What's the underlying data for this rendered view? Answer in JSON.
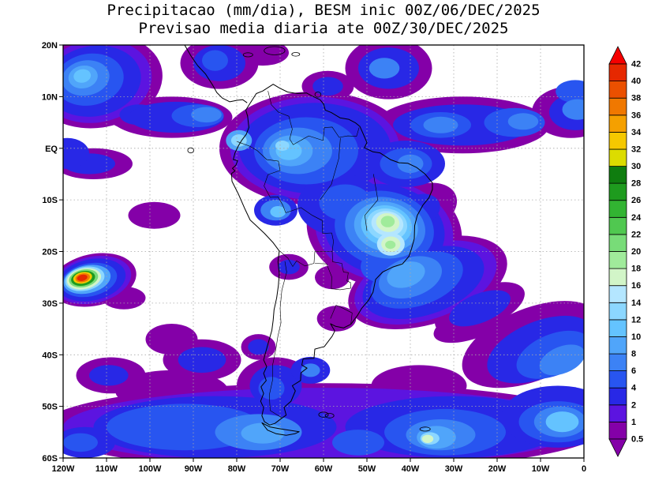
{
  "title": {
    "line1": "Precipitacao (mm/dia), BESM inic 00Z/06/DEC/2025",
    "line2": "Previsao media diaria ate 00Z/30/DEC/2025"
  },
  "axes": {
    "lat_ticks": [
      "20N",
      "10N",
      "EQ",
      "10S",
      "20S",
      "30S",
      "40S",
      "50S",
      "60S"
    ],
    "lon_ticks": [
      "120W",
      "110W",
      "100W",
      "90W",
      "80W",
      "70W",
      "60W",
      "50W",
      "40W",
      "30W",
      "20W",
      "10W",
      "0"
    ]
  },
  "chart_data": {
    "type": "heatmap",
    "subtype": "filled-contour-map",
    "title": "Precipitacao (mm/dia), BESM inic 00Z/06/DEC/2025",
    "subtitle": "Previsao media diaria ate 00Z/30/DEC/2025",
    "model": "BESM",
    "init": "00Z/06/DEC/2025",
    "valid_through": "00Z/30/DEC/2025",
    "units": "mm/dia",
    "lon_range": [
      -120,
      0
    ],
    "lat_range": [
      -60,
      20
    ],
    "grid": true,
    "colorbar_position": "right",
    "levels": [
      0.5,
      1,
      2,
      4,
      6,
      8,
      10,
      12,
      14,
      16,
      18,
      20,
      22,
      24,
      26,
      28,
      30,
      32,
      34,
      36,
      38,
      40,
      42
    ],
    "palette": [
      "#8400a8",
      "#5c14e0",
      "#2828e6",
      "#2855f0",
      "#3c82f5",
      "#50a5fa",
      "#64c3ff",
      "#8cd7ff",
      "#b4e6ff",
      "#d2f5c8",
      "#a0eb9b",
      "#78dc78",
      "#50c850",
      "#32b432",
      "#1e9b1e",
      "#0f7d0f",
      "#dcdc00",
      "#f5c800",
      "#f5a000",
      "#f07800",
      "#eb5000",
      "#e62800"
    ],
    "over_color": "#f50000",
    "under_color": "#8400a8",
    "features_columns": [
      "lon",
      "lat",
      "rx_deg",
      "ry_deg",
      "rotation_deg",
      "value_mm_day"
    ],
    "features": [
      [
        -112,
        13,
        15,
        9,
        -10,
        0.7
      ],
      [
        -112.5,
        13,
        13,
        8,
        -10,
        1.5
      ],
      [
        -113,
        13,
        11,
        6.8,
        -10,
        3
      ],
      [
        -114,
        13.3,
        8,
        5,
        -10,
        5
      ],
      [
        -114.8,
        13.6,
        5.5,
        3.4,
        -10,
        7
      ],
      [
        -115.4,
        13.8,
        3.4,
        2.2,
        -10,
        9
      ],
      [
        -115.6,
        14,
        2,
        1.3,
        -10,
        11
      ],
      [
        -103,
        6.5,
        7,
        3,
        0,
        0.7
      ],
      [
        -102.5,
        6.5,
        4.5,
        2,
        0,
        3
      ],
      [
        -95,
        6,
        14,
        4,
        0,
        0.7
      ],
      [
        -94,
        6,
        11,
        3,
        0,
        3
      ],
      [
        -89,
        6.3,
        6,
        2.2,
        0,
        5
      ],
      [
        -87,
        6.5,
        3.5,
        1.5,
        0,
        7
      ],
      [
        -84,
        16.5,
        9,
        5,
        0,
        0.7
      ],
      [
        -84,
        16.5,
        6,
        3.5,
        0,
        3
      ],
      [
        -85,
        17,
        3,
        2,
        0,
        5
      ],
      [
        -62,
        0,
        22,
        11,
        0,
        0.7
      ],
      [
        -62,
        0,
        19.5,
        10,
        0,
        1.5
      ],
      [
        -62,
        0,
        17.5,
        8.8,
        0,
        3
      ],
      [
        -64,
        -0.5,
        12,
        6.5,
        0,
        5
      ],
      [
        -66,
        -0.5,
        8,
        4.5,
        0,
        7
      ],
      [
        -67.5,
        -0.5,
        5,
        3,
        0,
        9
      ],
      [
        -68,
        -0.5,
        3,
        1.8,
        0,
        11
      ],
      [
        -69.5,
        0.5,
        1.6,
        1,
        0,
        13
      ],
      [
        -41,
        -3,
        9,
        4.5,
        0,
        3
      ],
      [
        -41,
        -3,
        6,
        3,
        0,
        5
      ],
      [
        -40,
        -3,
        3,
        1.8,
        0,
        7
      ],
      [
        -28,
        4.5,
        20,
        5.5,
        0,
        0.7
      ],
      [
        -28,
        4.5,
        16,
        4,
        0,
        3
      ],
      [
        -33,
        4.5,
        7,
        2.5,
        0,
        5
      ],
      [
        -33,
        4.5,
        4,
        1.6,
        0,
        7
      ],
      [
        -16,
        5,
        7,
        2.8,
        0,
        5
      ],
      [
        -14,
        5.2,
        3.5,
        1.6,
        0,
        7
      ],
      [
        -45,
        15.5,
        10,
        6,
        0,
        0.7
      ],
      [
        -45,
        15.5,
        7,
        4,
        0,
        3
      ],
      [
        -46,
        15.5,
        3.5,
        2,
        0,
        7
      ],
      [
        -3,
        7,
        9,
        5,
        0,
        0.7
      ],
      [
        -2,
        7,
        6,
        3.5,
        0,
        3
      ],
      [
        -1.5,
        7.5,
        3.5,
        2,
        0,
        7
      ],
      [
        -2,
        11,
        4.5,
        2.2,
        0,
        5
      ],
      [
        -59,
        12,
        6,
        3,
        0,
        0.7
      ],
      [
        -59,
        12,
        3.5,
        1.8,
        0,
        3
      ],
      [
        -74,
        18.5,
        6,
        2.5,
        0,
        0.7
      ],
      [
        -79.5,
        1.5,
        3,
        2,
        0,
        9
      ],
      [
        -79.5,
        1.5,
        1.8,
        1.2,
        0,
        13
      ],
      [
        -113,
        -3,
        9,
        3,
        0,
        0.7
      ],
      [
        -114,
        -3,
        6,
        2,
        0,
        3
      ],
      [
        -119,
        -1,
        5,
        3,
        0,
        3
      ],
      [
        -71,
        -12,
        5,
        3,
        0,
        3
      ],
      [
        -71,
        -12,
        3.5,
        2,
        0,
        7
      ],
      [
        -70.5,
        -12.3,
        1.8,
        1.1,
        0,
        11
      ],
      [
        -56,
        -11,
        10,
        6,
        0,
        3
      ],
      [
        -55,
        -10.5,
        6,
        3.5,
        0,
        5
      ],
      [
        -46,
        -16,
        18,
        11,
        10,
        0.7
      ],
      [
        -46,
        -16,
        16,
        9.8,
        10,
        1.5
      ],
      [
        -46,
        -15.8,
        14,
        8.8,
        10,
        3
      ],
      [
        -46,
        -15.6,
        11.5,
        7.3,
        10,
        5
      ],
      [
        -45.8,
        -15.4,
        9.3,
        5.9,
        10,
        7
      ],
      [
        -45.6,
        -15.2,
        7.4,
        4.8,
        10,
        9
      ],
      [
        -45.5,
        -15,
        5.9,
        3.9,
        10,
        11
      ],
      [
        -45.4,
        -14.8,
        4.7,
        3.1,
        10,
        13
      ],
      [
        -45.3,
        -14.6,
        3.7,
        2.4,
        10,
        15
      ],
      [
        -45.2,
        -14.4,
        2.7,
        1.8,
        10,
        17
      ],
      [
        -45.2,
        -14.2,
        1.6,
        1.1,
        0,
        19
      ],
      [
        -44.5,
        -18.6,
        3.2,
        2.2,
        0,
        15
      ],
      [
        -44.5,
        -18.6,
        2.2,
        1.5,
        0,
        17
      ],
      [
        -44.6,
        -18.7,
        1.2,
        0.8,
        0,
        19
      ],
      [
        -37,
        -11.5,
        8,
        4.5,
        -20,
        0.7
      ],
      [
        -38,
        -12,
        5,
        3,
        -20,
        3
      ],
      [
        -36,
        -26,
        19,
        8,
        -18,
        0.7
      ],
      [
        -36.5,
        -26,
        17,
        7.2,
        -18,
        1.5
      ],
      [
        -37,
        -26,
        14.5,
        6.3,
        -18,
        3
      ],
      [
        -38.5,
        -25.5,
        11,
        5,
        -18,
        5
      ],
      [
        -40,
        -25,
        7.5,
        3.8,
        -18,
        7
      ],
      [
        -41,
        -24.5,
        4.5,
        2.4,
        -18,
        9
      ],
      [
        -45.5,
        -22.5,
        6,
        3.5,
        -10,
        5
      ],
      [
        -24,
        -31,
        11,
        4,
        -22,
        0.7
      ],
      [
        -24,
        -31,
        7.5,
        2.8,
        -22,
        3
      ],
      [
        -113,
        -25.5,
        10,
        5,
        -12,
        0.7
      ],
      [
        -113.2,
        -25.5,
        9,
        4.5,
        -12,
        1.5
      ],
      [
        -113.5,
        -25.5,
        8,
        4,
        -12,
        3
      ],
      [
        -114,
        -25.5,
        6.5,
        3.2,
        -12,
        5
      ],
      [
        -114.5,
        -25.4,
        5.5,
        2.7,
        -12,
        9
      ],
      [
        -115,
        -25.3,
        4.6,
        2.3,
        -12,
        13
      ],
      [
        -115.2,
        -25.3,
        4,
        2,
        -12,
        17
      ],
      [
        -115.3,
        -25.2,
        3.4,
        1.7,
        -12,
        21
      ],
      [
        -115.4,
        -25.2,
        2.8,
        1.4,
        -12,
        27
      ],
      [
        -115.5,
        -25.1,
        2.2,
        1.1,
        -12,
        33
      ],
      [
        -115.5,
        -25.1,
        1.7,
        0.85,
        -12,
        37
      ],
      [
        -115.6,
        -25.1,
        1.2,
        0.6,
        -12,
        41
      ],
      [
        -106,
        -29,
        5,
        2.2,
        0,
        0.7
      ],
      [
        -99,
        -13,
        6,
        2.6,
        0,
        0.7
      ],
      [
        -95,
        -37,
        6,
        3,
        0,
        0.7
      ],
      [
        -88,
        -41,
        9,
        4,
        0,
        0.7
      ],
      [
        -88,
        -41,
        5.5,
        2.5,
        0,
        3
      ],
      [
        -109,
        -44,
        8,
        3.5,
        0,
        0.7
      ],
      [
        -109.5,
        -44,
        4.5,
        2,
        0,
        3
      ],
      [
        -68,
        -23,
        4.5,
        2.5,
        0,
        0.7
      ],
      [
        -68,
        -23,
        2.5,
        1.4,
        0,
        3
      ],
      [
        -58,
        -25,
        4,
        2.3,
        0,
        0.7
      ],
      [
        -57,
        -33,
        4.5,
        2.5,
        0,
        0.7
      ],
      [
        -60,
        -54,
        65,
        8.5,
        0,
        0.7
      ],
      [
        -60,
        -54,
        60,
        7.6,
        0,
        1.5
      ],
      [
        -95,
        -47,
        13,
        4,
        0,
        0.7
      ],
      [
        -38,
        -46,
        11,
        4,
        0,
        0.7
      ],
      [
        -85,
        -54,
        28,
        6,
        0,
        3
      ],
      [
        -30,
        -54,
        25,
        6,
        0,
        3
      ],
      [
        -6,
        -52,
        13,
        6,
        0,
        3
      ],
      [
        -92,
        -54,
        18,
        4.5,
        0,
        5
      ],
      [
        -75,
        -55,
        10,
        3.5,
        0,
        7
      ],
      [
        -74,
        -55.2,
        5,
        2,
        0,
        9
      ],
      [
        -32,
        -55,
        14,
        4.5,
        0,
        5
      ],
      [
        -33,
        -55.5,
        8,
        3,
        0,
        7
      ],
      [
        -34,
        -56,
        4.5,
        2.2,
        0,
        9
      ],
      [
        -35.5,
        -56.2,
        2.2,
        1.2,
        0,
        13
      ],
      [
        -36,
        -56.3,
        1.3,
        0.8,
        0,
        17
      ],
      [
        -6,
        -53,
        9,
        4,
        0,
        5
      ],
      [
        -5.5,
        -53,
        6,
        3,
        0,
        7
      ],
      [
        -5,
        -53,
        3.8,
        2,
        0,
        11
      ],
      [
        -115,
        -57,
        7,
        3,
        0,
        3
      ],
      [
        -116,
        -57,
        4,
        1.8,
        0,
        5
      ],
      [
        -52,
        -57,
        6,
        2.5,
        0,
        5
      ],
      [
        -71,
        -46,
        9,
        5.5,
        0,
        0.7
      ],
      [
        -71,
        -46,
        6,
        4,
        0,
        3
      ],
      [
        -72,
        -46.5,
        3,
        2.2,
        0,
        5
      ],
      [
        -75,
        -38.5,
        4,
        2.5,
        0,
        0.7
      ],
      [
        -75,
        -38.5,
        2.4,
        1.5,
        0,
        3
      ],
      [
        -63,
        -43,
        4.5,
        2.6,
        0,
        3
      ],
      [
        -63,
        -43,
        2.2,
        1.3,
        0,
        7
      ],
      [
        -12,
        -38,
        17,
        7,
        -22,
        0.7
      ],
      [
        -10,
        -39,
        13,
        5.5,
        -22,
        3
      ],
      [
        -7,
        -40,
        9,
        4,
        -22,
        5
      ],
      [
        -5,
        -41,
        5.5,
        2.6,
        -22,
        7
      ],
      [
        -26,
        -34,
        9,
        3,
        -18,
        0.7
      ]
    ]
  }
}
